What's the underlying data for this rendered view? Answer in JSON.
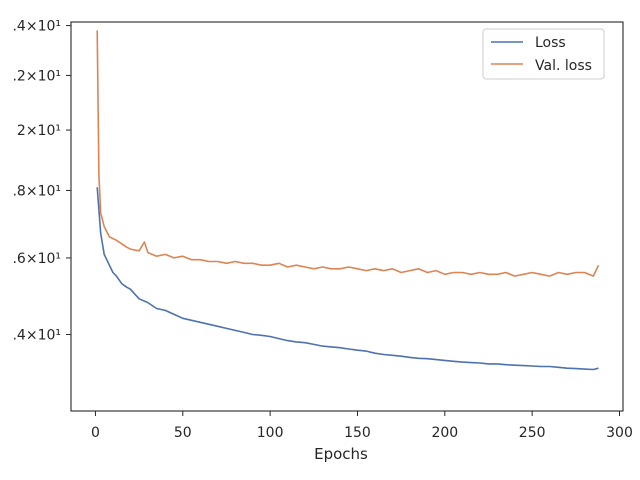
{
  "chart_data": {
    "type": "line",
    "xlabel": "Epochs",
    "ylabel": "",
    "title": "",
    "y_scale": "log",
    "xlim": [
      -14,
      302
    ],
    "ylim": [
      12.25,
      24.15
    ],
    "grid": false,
    "legend_position": "top-right",
    "x_ticks": [
      0,
      50,
      100,
      150,
      200,
      250,
      300
    ],
    "y_ticks": [
      {
        "value": 14,
        "label": ".4×10¹"
      },
      {
        "value": 16,
        "label": ".6×10¹"
      },
      {
        "value": 18,
        "label": ".8×10¹"
      },
      {
        "value": 20,
        "label": "2×10¹"
      },
      {
        "value": 22,
        "label": ".2×10¹"
      },
      {
        "value": 24,
        "label": ".4×10¹"
      }
    ],
    "series": [
      {
        "name": "Loss",
        "color": "#4c72b0",
        "x": [
          1,
          3,
          5,
          8,
          10,
          12,
          15,
          18,
          20,
          25,
          30,
          35,
          40,
          45,
          50,
          55,
          60,
          65,
          70,
          75,
          80,
          85,
          90,
          95,
          100,
          105,
          110,
          115,
          120,
          125,
          130,
          135,
          140,
          145,
          150,
          155,
          160,
          165,
          170,
          175,
          180,
          185,
          190,
          195,
          200,
          205,
          210,
          215,
          220,
          225,
          230,
          235,
          240,
          245,
          250,
          255,
          260,
          265,
          270,
          275,
          280,
          285,
          288
        ],
        "y": [
          18.1,
          16.7,
          16.1,
          15.8,
          15.6,
          15.5,
          15.3,
          15.2,
          15.15,
          14.9,
          14.8,
          14.65,
          14.6,
          14.5,
          14.4,
          14.35,
          14.3,
          14.25,
          14.2,
          14.15,
          14.1,
          14.05,
          14.0,
          13.98,
          13.95,
          13.9,
          13.85,
          13.82,
          13.8,
          13.76,
          13.72,
          13.7,
          13.68,
          13.65,
          13.62,
          13.6,
          13.55,
          13.52,
          13.5,
          13.48,
          13.45,
          13.43,
          13.42,
          13.4,
          13.38,
          13.36,
          13.34,
          13.33,
          13.32,
          13.3,
          13.3,
          13.28,
          13.27,
          13.26,
          13.25,
          13.24,
          13.24,
          13.22,
          13.2,
          13.19,
          13.18,
          13.17,
          13.2
        ]
      },
      {
        "name": "Val. loss",
        "color": "#dd8452",
        "x": [
          1,
          2,
          3,
          5,
          8,
          10,
          12,
          15,
          18,
          20,
          25,
          28,
          30,
          35,
          40,
          45,
          50,
          55,
          60,
          65,
          70,
          75,
          80,
          85,
          90,
          95,
          100,
          105,
          110,
          115,
          120,
          125,
          130,
          135,
          140,
          145,
          150,
          155,
          160,
          165,
          170,
          175,
          180,
          185,
          190,
          195,
          200,
          205,
          210,
          215,
          220,
          225,
          230,
          235,
          240,
          245,
          250,
          255,
          260,
          265,
          270,
          275,
          280,
          285,
          288
        ],
        "y": [
          23.8,
          18.5,
          17.3,
          16.9,
          16.6,
          16.55,
          16.5,
          16.4,
          16.3,
          16.25,
          16.2,
          16.45,
          16.15,
          16.05,
          16.1,
          16.0,
          16.05,
          15.95,
          15.95,
          15.9,
          15.9,
          15.85,
          15.9,
          15.85,
          15.85,
          15.8,
          15.8,
          15.85,
          15.75,
          15.8,
          15.75,
          15.7,
          15.75,
          15.7,
          15.7,
          15.75,
          15.7,
          15.65,
          15.7,
          15.65,
          15.7,
          15.6,
          15.65,
          15.7,
          15.6,
          15.65,
          15.55,
          15.6,
          15.6,
          15.55,
          15.6,
          15.55,
          15.55,
          15.6,
          15.5,
          15.55,
          15.6,
          15.55,
          15.5,
          15.6,
          15.55,
          15.6,
          15.6,
          15.5,
          15.8
        ]
      }
    ]
  }
}
